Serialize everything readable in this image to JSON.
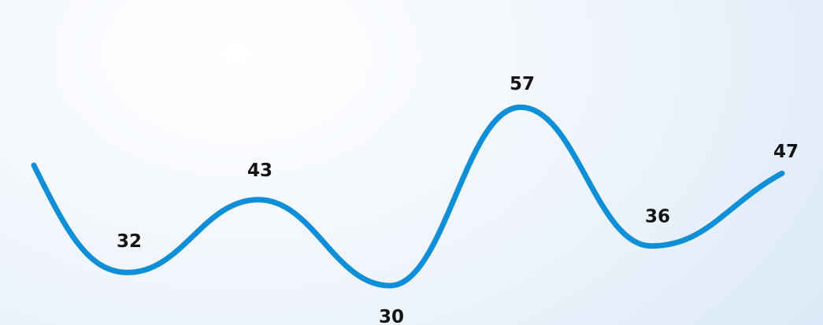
{
  "chart_data": {
    "type": "line",
    "title": "",
    "xlabel": "",
    "ylabel": "",
    "categories": [
      "",
      "",
      "",
      "",
      "",
      ""
    ],
    "series": [
      {
        "values": [
          32,
          43,
          30,
          57,
          36,
          47
        ]
      }
    ],
    "smooth": true,
    "grid": false,
    "legend": "none",
    "line_color": "#0f8fd8",
    "label_color": "#141414"
  }
}
